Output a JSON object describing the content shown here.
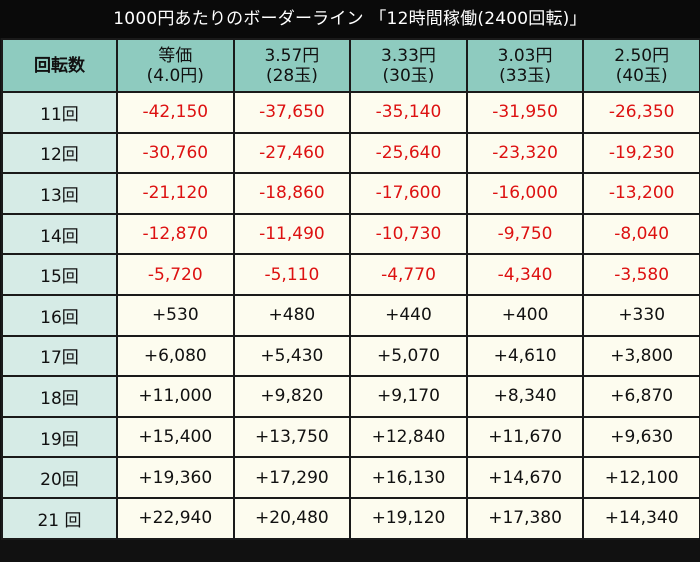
{
  "title": "1000円あたりのボーダーライン 「12時間稼働(2400回転)」",
  "colors": {
    "title_bg": "#0a0a0a",
    "header_bg": "#8ecbbf",
    "rowhead_bg": "#d6ebe6",
    "cell_bg": "#fdfcef",
    "negative": "#dd1111",
    "positive": "#111111"
  },
  "table": {
    "corner_label": "回転数",
    "columns": [
      {
        "line1": "等価",
        "line2": "(4.0円)"
      },
      {
        "line1": "3.57円",
        "line2": "(28玉)"
      },
      {
        "line1": "3.33円",
        "line2": "(30玉)"
      },
      {
        "line1": "3.03円",
        "line2": "(33玉)"
      },
      {
        "line1": "2.50円",
        "line2": "(40玉)"
      }
    ],
    "rows": [
      {
        "label": "11回",
        "values": [
          "-42,150",
          "-37,650",
          "-35,140",
          "-31,950",
          "-26,350"
        ]
      },
      {
        "label": "12回",
        "values": [
          "-30,760",
          "-27,460",
          "-25,640",
          "-23,320",
          "-19,230"
        ]
      },
      {
        "label": "13回",
        "values": [
          "-21,120",
          "-18,860",
          "-17,600",
          "-16,000",
          "-13,200"
        ]
      },
      {
        "label": "14回",
        "values": [
          "-12,870",
          "-11,490",
          "-10,730",
          "-9,750",
          "-8,040"
        ]
      },
      {
        "label": "15回",
        "values": [
          "-5,720",
          "-5,110",
          "-4,770",
          "-4,340",
          "-3,580"
        ]
      },
      {
        "label": "16回",
        "values": [
          "+530",
          "+480",
          "+440",
          "+400",
          "+330"
        ]
      },
      {
        "label": "17回",
        "values": [
          "+6,080",
          "+5,430",
          "+5,070",
          "+4,610",
          "+3,800"
        ]
      },
      {
        "label": "18回",
        "values": [
          "+11,000",
          "+9,820",
          "+9,170",
          "+8,340",
          "+6,870"
        ]
      },
      {
        "label": "19回",
        "values": [
          "+15,400",
          "+13,750",
          "+12,840",
          "+11,670",
          "+9,630"
        ]
      },
      {
        "label": "20回",
        "values": [
          "+19,360",
          "+17,290",
          "+16,130",
          "+14,670",
          "+12,100"
        ]
      },
      {
        "label": "21 回",
        "values": [
          "+22,940",
          "+20,480",
          "+19,120",
          "+17,380",
          "+14,340"
        ]
      }
    ]
  }
}
